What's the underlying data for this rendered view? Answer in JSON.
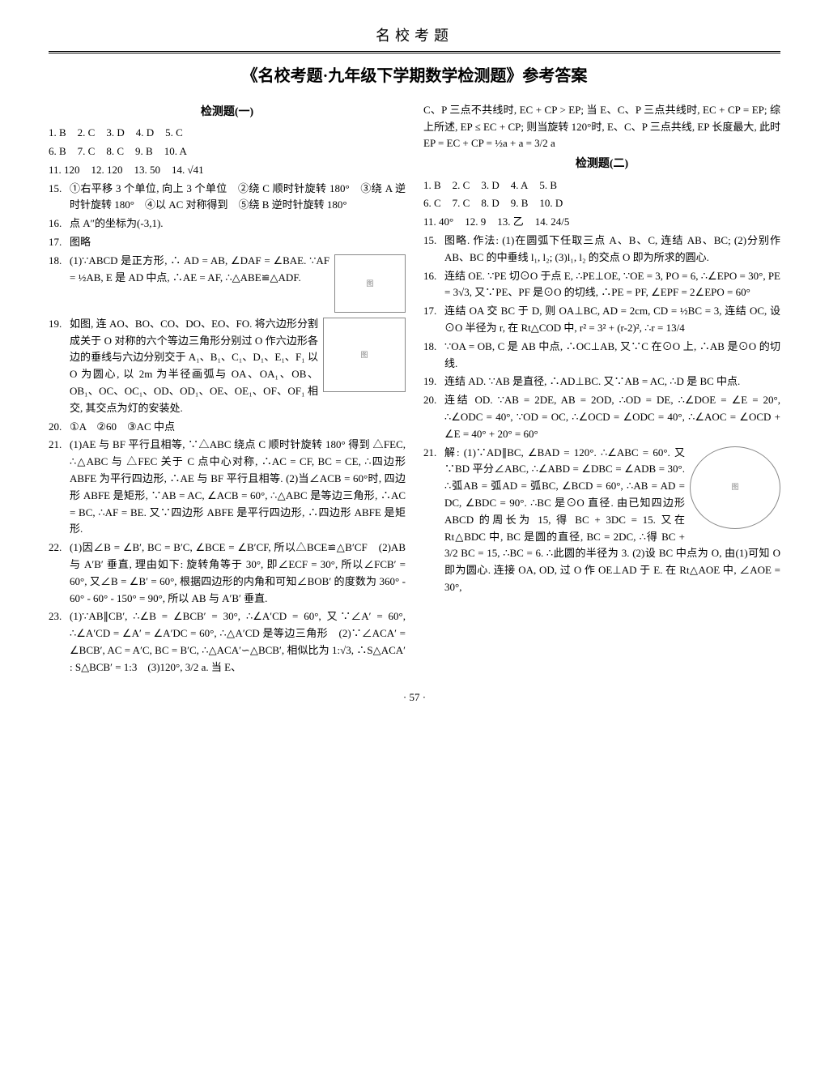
{
  "header": "名校考题",
  "title": "《名校考题·九年级下学期数学检测题》参考答案",
  "pageNumber": "· 57 ·",
  "col1": {
    "section1_title": "检测题(一)",
    "mc_rows": [
      [
        [
          "1.",
          "B"
        ],
        [
          "2.",
          "C"
        ],
        [
          "3.",
          "D"
        ],
        [
          "4.",
          "D"
        ],
        [
          "5.",
          "C"
        ]
      ],
      [
        [
          "6.",
          "B"
        ],
        [
          "7.",
          "C"
        ],
        [
          "8.",
          "C"
        ],
        [
          "9.",
          "B"
        ],
        [
          "10.",
          "A"
        ]
      ],
      [
        [
          "11.",
          "120"
        ],
        [
          "12.",
          "120"
        ],
        [
          "13.",
          "50"
        ],
        [
          "14.",
          "√41"
        ]
      ]
    ],
    "items": [
      {
        "n": "15.",
        "t": "①右平移 3 个单位, 向上 3 个单位　②绕 C 顺时针旋转 180°　③绕 A 逆时针旋转 180°　④以 AC 对称得到　⑤绕 B 逆时针旋转 180°"
      },
      {
        "n": "16.",
        "t": "点 A″的坐标为(-3,1)."
      },
      {
        "n": "17.",
        "t": "图略"
      },
      {
        "n": "18.",
        "t": "(1)∵ABCD 是正方形, ∴ AD = AB, ∠DAF = ∠BAE. ∵AF = ½AB, E 是 AD 中点, ∴AE = AF, ∴△ABE≌△ADF.",
        "fig": "grid"
      },
      {
        "n": "19.",
        "t": "如图, 连 AO、BO、CO、DO、EO、FO. 将六边形分割成关于 O 对称的六个等边三角形分别过 O 作六边形各边的垂线与六边分别交于 A₁、B₁、C₁、D₁、E₁、F₁ 以 O 为圆心, 以 2m 为半径画弧与 OA、OA₁、OB、OB₁、OC、OC₁、OD、OD₁、OE、OE₁、OF、OF₁ 相交, 其交点为灯的安装处.",
        "fig": "hex"
      },
      {
        "n": "20.",
        "t": "①A　②60　③AC 中点"
      },
      {
        "n": "21.",
        "t": "(1)AE 与 BF 平行且相等, ∵△ABC 绕点 C 顺时针旋转 180° 得到 △FEC, ∴△ABC 与 △FEC 关于 C 点中心对称, ∴AC = CF, BC = CE, ∴四边形 ABFE 为平行四边形, ∴AE 与 BF 平行且相等. (2)当∠ACB = 60°时, 四边形 ABFE 是矩形, ∵AB = AC, ∠ACB = 60°, ∴△ABC 是等边三角形, ∴AC = BC, ∴AF = BE. 又∵四边形 ABFE 是平行四边形, ∴四边形 ABFE 是矩形."
      },
      {
        "n": "22.",
        "t": "(1)因∠B = ∠B′, BC = B′C, ∠BCE = ∠B′CF, 所以△BCE≌△B′CF　(2)AB 与 A′B′ 垂直, 理由如下: 旋转角等于 30°, 即∠ECF = 30°, 所以∠FCB′ = 60°, 又∠B = ∠B′ = 60°, 根据四边形的内角和可知∠BOB′ 的度数为 360° - 60° - 60° - 150° = 90°, 所以 AB 与 A′B′ 垂直."
      },
      {
        "n": "23.",
        "t": "(1)∵AB∥CB′, ∴∠B = ∠BCB′ = 30°, ∴∠A′CD = 60°, 又∵∠A′ = 60°, ∴∠A′CD = ∠A′ = ∠A′DC = 60°, ∴△A′CD 是等边三角形　(2)∵∠ACA′ = ∠BCB′, AC = A′C, BC = B′C, ∴△ACA′∽△BCB′, 相似比为 1:√3, ∴S△ACA′ : S△BCB′ = 1:3　(3)120°, 3/2 a. 当 E、"
      }
    ]
  },
  "col2": {
    "lead": "C、P 三点不共线时, EC + CP > EP; 当 E、C、P 三点共线时, EC + CP = EP; 综上所述, EP ≤ EC + CP; 则当旋转 120°时, E、C、P 三点共线, EP 长度最大, 此时 EP = EC + CP = ½a + a = 3/2 a",
    "section2_title": "检测题(二)",
    "mc_rows": [
      [
        [
          "1.",
          "B"
        ],
        [
          "2.",
          "C"
        ],
        [
          "3.",
          "D"
        ],
        [
          "4.",
          "A"
        ],
        [
          "5.",
          "B"
        ]
      ],
      [
        [
          "6.",
          "C"
        ],
        [
          "7.",
          "C"
        ],
        [
          "8.",
          "D"
        ],
        [
          "9.",
          "B"
        ],
        [
          "10.",
          "D"
        ]
      ],
      [
        [
          "11.",
          "40°"
        ],
        [
          "12.",
          "9"
        ],
        [
          "13.",
          "乙"
        ],
        [
          "14.",
          "24/5"
        ]
      ]
    ],
    "items": [
      {
        "n": "15.",
        "t": "图略. 作法: (1)在圆弧下任取三点 A、B、C, 连结 AB、BC; (2)分别作 AB、BC 的中垂线 l₁, l₂; (3)l₁, l₂ 的交点 O 即为所求的圆心."
      },
      {
        "n": "16.",
        "t": "连结 OE. ∵PE 切⊙O 于点 E, ∴PE⊥OE, ∵OE = 3, PO = 6, ∴∠EPO = 30°, PE = 3√3, 又∵PE、PF 是⊙O 的切线, ∴PE = PF, ∠EPF = 2∠EPO = 60°"
      },
      {
        "n": "17.",
        "t": "连结 OA 交 BC 于 D, 则 OA⊥BC, AD = 2cm, CD = ½BC = 3, 连结 OC, 设⊙O 半径为 r, 在 Rt△COD 中, r² = 3² + (r-2)², ∴r = 13/4"
      },
      {
        "n": "18.",
        "t": "∵OA = OB, C 是 AB 中点, ∴OC⊥AB, 又∵C 在⊙O 上, ∴AB 是⊙O 的切线."
      },
      {
        "n": "19.",
        "t": "连结 AD. ∵AB 是直径, ∴AD⊥BC. 又∵AB = AC, ∴D 是 BC 中点."
      },
      {
        "n": "20.",
        "t": "连结 OD. ∵AB = 2DE, AB = 2OD, ∴OD = DE, ∴∠DOE = ∠E = 20°, ∴∠ODC = 40°, ∵OD = OC, ∴∠OCD = ∠ODC = 40°, ∴∠AOC = ∠OCD + ∠E = 40° + 20° = 60°"
      },
      {
        "n": "21.",
        "t": "解: (1)∵AD∥BC, ∠BAD = 120°. ∴∠ABC = 60°. 又∵BD 平分∠ABC, ∴∠ABD = ∠DBC = ∠ADB = 30°. ∴弧AB = 弧AD = 弧BC, ∠BCD = 60°, ∴AB = AD = DC, ∠BDC = 90°. ∴BC 是⊙O 直径. 由已知四边形 ABCD 的周长为 15, 得 BC + 3DC = 15. 又在 Rt△BDC 中, BC 是圆的直径, BC = 2DC, ∴得 BC + 3/2 BC = 15, ∴BC = 6. ∴此圆的半径为 3. (2)设 BC 中点为 O, 由(1)可知 O 即为圆心. 连接 OA, OD, 过 O 作 OE⊥AD 于 E. 在 Rt△AOE 中, ∠AOE = 30°,",
        "fig": "circle"
      }
    ]
  },
  "style": {
    "body_fontsize": 13,
    "title_fontsize": 20,
    "header_fontsize": 18,
    "text_color": "#000000",
    "background": "#ffffff",
    "border_color": "#888888"
  }
}
